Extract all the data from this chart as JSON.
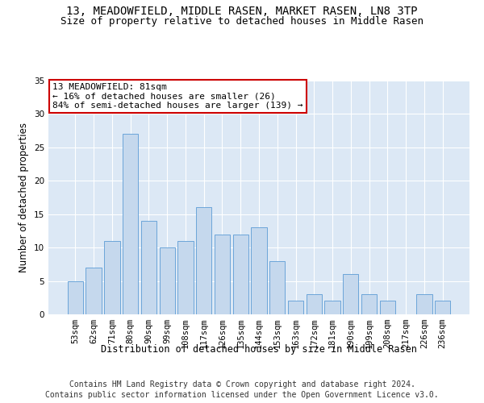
{
  "title_line1": "13, MEADOWFIELD, MIDDLE RASEN, MARKET RASEN, LN8 3TP",
  "title_line2": "Size of property relative to detached houses in Middle Rasen",
  "xlabel": "Distribution of detached houses by size in Middle Rasen",
  "ylabel": "Number of detached properties",
  "categories": [
    "53sqm",
    "62sqm",
    "71sqm",
    "80sqm",
    "90sqm",
    "99sqm",
    "108sqm",
    "117sqm",
    "126sqm",
    "135sqm",
    "144sqm",
    "153sqm",
    "163sqm",
    "172sqm",
    "181sqm",
    "190sqm",
    "199sqm",
    "208sqm",
    "217sqm",
    "226sqm",
    "236sqm"
  ],
  "values": [
    5,
    7,
    11,
    27,
    14,
    10,
    11,
    16,
    12,
    12,
    13,
    8,
    2,
    3,
    2,
    6,
    3,
    2,
    0,
    3,
    2
  ],
  "bar_color": "#c5d8ed",
  "bar_edge_color": "#5b9bd5",
  "highlight_bar_index": 3,
  "annotation_text_line1": "13 MEADOWFIELD: 81sqm",
  "annotation_text_line2": "← 16% of detached houses are smaller (26)",
  "annotation_text_line3": "84% of semi-detached houses are larger (139) →",
  "annotation_box_color": "#ffffff",
  "annotation_box_edge_color": "#cc0000",
  "ylim": [
    0,
    35
  ],
  "yticks": [
    0,
    5,
    10,
    15,
    20,
    25,
    30,
    35
  ],
  "bg_color": "#dce8f5",
  "footer_line1": "Contains HM Land Registry data © Crown copyright and database right 2024.",
  "footer_line2": "Contains public sector information licensed under the Open Government Licence v3.0.",
  "title_fontsize": 10,
  "subtitle_fontsize": 9,
  "axis_label_fontsize": 8.5,
  "tick_fontsize": 7.5,
  "footer_fontsize": 7,
  "annotation_fontsize": 8
}
